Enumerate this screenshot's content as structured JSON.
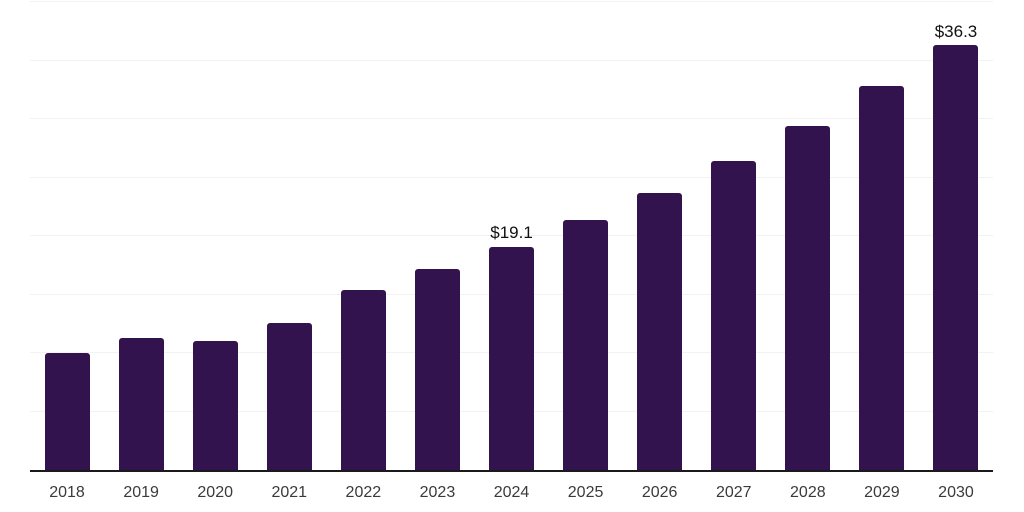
{
  "chart_data": {
    "type": "bar",
    "title": "",
    "xlabel": "",
    "ylabel": "",
    "categories": [
      "2018",
      "2019",
      "2020",
      "2021",
      "2022",
      "2023",
      "2024",
      "2025",
      "2026",
      "2027",
      "2028",
      "2029",
      "2030"
    ],
    "values": [
      10.0,
      11.3,
      11.0,
      12.6,
      15.4,
      17.2,
      19.1,
      21.4,
      23.7,
      26.4,
      29.4,
      32.8,
      36.3
    ],
    "data_labels": [
      "",
      "",
      "",
      "",
      "",
      "",
      "$19.1",
      "",
      "",
      "",
      "",
      "",
      "$36.3"
    ],
    "ylim": [
      0,
      40
    ],
    "gridline_step": 5,
    "grid": "horizontal-only",
    "legend": "none",
    "y_tick_labels_visible": false,
    "colors": {
      "bar": "#32134d",
      "axis": "#1a1a1a",
      "gridline": "#f2f2f2",
      "tick_text": "#3a3a3a",
      "value_text": "#111111",
      "background": "#ffffff"
    }
  }
}
